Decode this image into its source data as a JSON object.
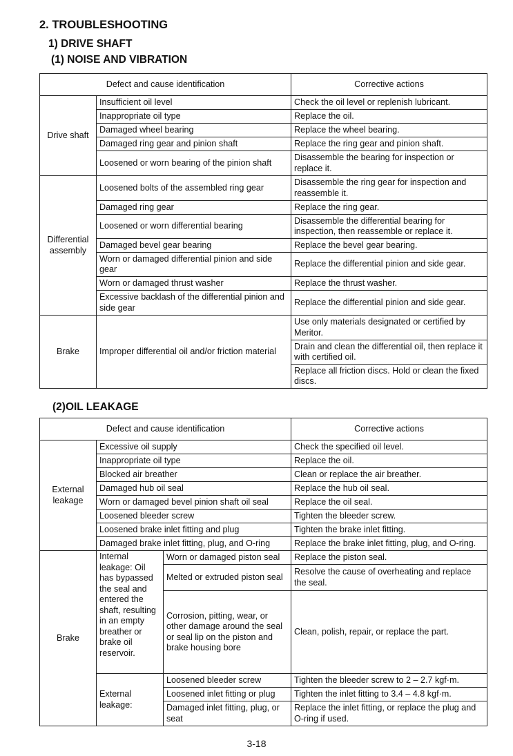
{
  "heading": "2. TROUBLESHOOTING",
  "section": "1) DRIVE SHAFT",
  "sub1": "(1) NOISE AND VIBRATION",
  "sub2": "(2)OIL LEAKAGE",
  "page_number": "3-18",
  "table1": {
    "headers": [
      "Defect and cause identification",
      "Corrective actions"
    ],
    "groups": [
      {
        "label": "Drive shaft",
        "rows": [
          {
            "cause": "Insufficient oil level",
            "action": "Check the oil level or replenish lubricant."
          },
          {
            "cause": "Inappropriate oil type",
            "action": "Replace the oil."
          },
          {
            "cause": "Damaged wheel bearing",
            "action": "Replace the wheel bearing."
          },
          {
            "cause": "Damaged ring gear and pinion shaft",
            "action": "Replace the ring gear and pinion shaft."
          },
          {
            "cause": "Loosened or worn bearing of the pinion shaft",
            "action": "Disassemble the bearing for inspection or replace it."
          }
        ]
      },
      {
        "label": "Differential assembly",
        "rows": [
          {
            "cause": "Loosened bolts of the assembled ring gear",
            "action": "Disassemble the ring gear for inspection and reassemble it."
          },
          {
            "cause": "Damaged ring gear",
            "action": "Replace the ring gear."
          },
          {
            "cause": "Loosened or worn differential bearing",
            "action": "Disassemble the differential bearing for inspection, then reassemble or replace it."
          },
          {
            "cause": "Damaged bevel gear bearing",
            "action": "Replace the bevel gear bearing."
          },
          {
            "cause": "Worn or damaged differential pinion and side gear",
            "action": "Replace the differential pinion and side gear."
          },
          {
            "cause": "Worn or damaged thrust washer",
            "action": "Replace the thrust washer."
          },
          {
            "cause": "Excessive backlash of the differential pinion and side gear",
            "action": "Replace the differential pinion and side gear."
          }
        ]
      },
      {
        "label": "Brake",
        "cause": "Improper differential oil and/or friction material",
        "actions": [
          "Use only materials designated or certified by Meritor.",
          "Drain and clean the differential oil, then replace it with certified oil.",
          "Replace all friction discs. Hold or clean the fixed discs."
        ]
      }
    ]
  },
  "table2": {
    "headers": [
      "Defect and cause identification",
      "Corrective actions"
    ],
    "external": {
      "label": "External leakage",
      "rows": [
        {
          "cause": "Excessive oil supply",
          "action": "Check the specified oil level."
        },
        {
          "cause": "Inappropriate oil type",
          "action": "Replace the oil."
        },
        {
          "cause": "Blocked air breather",
          "action": "Clean or replace the air breather."
        },
        {
          "cause": "Damaged hub oil seal",
          "action": "Replace the hub oil seal."
        },
        {
          "cause": "Worn or damaged bevel pinion shaft oil seal",
          "action": "Replace the oil seal."
        },
        {
          "cause": "Loosened bleeder screw",
          "action": "Tighten the bleeder screw."
        },
        {
          "cause": "Loosened brake inlet fitting and plug",
          "action": "Tighten the brake inlet fitting."
        },
        {
          "cause": "Damaged brake inlet fitting, plug, and O-ring",
          "action": "Replace the brake inlet fitting, plug, and O-ring."
        }
      ]
    },
    "brake": {
      "label": "Brake",
      "subgroups": [
        {
          "label": "Internal leakage: Oil has bypassed the seal and entered the shaft, resulting in an empty breather or brake oil reservoir.",
          "rows": [
            {
              "cause": "Worn or damaged piston seal",
              "action": "Replace the piston seal."
            },
            {
              "cause": "Melted or extruded piston seal",
              "action": "Resolve the cause of overheating and replace the seal."
            },
            {
              "cause": "Corrosion, pitting, wear, or other damage around the seal or seal lip on the piston and brake housing bore",
              "action": "Clean, polish, repair, or replace the part."
            }
          ]
        },
        {
          "label": "External leakage:",
          "rows": [
            {
              "cause": "Loosened bleeder screw",
              "action": "Tighten the bleeder screw to 2 – 2.7 kgf·m."
            },
            {
              "cause": "Loosened inlet fitting or plug",
              "action": "Tighten the inlet fitting to 3.4 – 4.8 kgf·m."
            },
            {
              "cause": "Damaged inlet fitting, plug, or seat",
              "action": "Replace the inlet fitting, or replace the plug and O-ring if used."
            }
          ]
        }
      ]
    }
  }
}
